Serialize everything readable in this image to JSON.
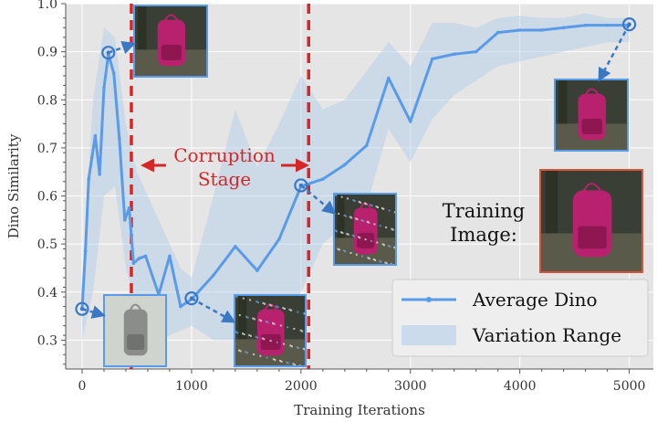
{
  "chart_data": {
    "type": "line",
    "xlabel": "Training Iterations",
    "ylabel": "Dino Similarity",
    "xlim": [
      -150,
      5220
    ],
    "ylim": [
      0.24,
      1.0
    ],
    "x_ticks": [
      0,
      1000,
      2000,
      3000,
      4000,
      5000
    ],
    "y_ticks": [
      0.3,
      0.4,
      0.5,
      0.6,
      0.7,
      0.8,
      0.9,
      1.0
    ],
    "grid": true,
    "legend_position": "bottom-right",
    "series": [
      {
        "name": "Average Dino",
        "color": "#5a9be8",
        "x": [
          0,
          30,
          60,
          90,
          120,
          160,
          200,
          240,
          290,
          340,
          390,
          430,
          470,
          520,
          580,
          700,
          800,
          900,
          1000,
          1200,
          1400,
          1600,
          1800,
          2000,
          2200,
          2400,
          2600,
          2800,
          3000,
          3200,
          3400,
          3600,
          3800,
          4000,
          4200,
          4400,
          4600,
          4800,
          5000
        ],
        "values": [
          0.365,
          0.485,
          0.635,
          0.68,
          0.725,
          0.645,
          0.825,
          0.895,
          0.855,
          0.72,
          0.55,
          0.575,
          0.46,
          0.47,
          0.475,
          0.395,
          0.475,
          0.37,
          0.385,
          0.435,
          0.495,
          0.445,
          0.51,
          0.62,
          0.635,
          0.665,
          0.705,
          0.845,
          0.755,
          0.885,
          0.895,
          0.9,
          0.94,
          0.945,
          0.945,
          0.95,
          0.955,
          0.955,
          0.955
        ]
      },
      {
        "name": "Variation Range",
        "color": "#aac8ea",
        "type": "area",
        "x": [
          0,
          100,
          200,
          300,
          400,
          500,
          700,
          900,
          1000,
          1200,
          1400,
          1600,
          1800,
          2000,
          2200,
          2400,
          2600,
          2800,
          3000,
          3200,
          3400,
          3600,
          3800,
          4000,
          4200,
          4400,
          4600,
          4800,
          5000
        ],
        "upper": [
          0.43,
          0.8,
          0.95,
          0.93,
          0.75,
          0.65,
          0.55,
          0.45,
          0.43,
          0.6,
          0.78,
          0.66,
          0.75,
          0.85,
          0.78,
          0.8,
          0.86,
          0.92,
          0.87,
          0.96,
          0.96,
          0.95,
          0.97,
          0.975,
          0.97,
          0.97,
          0.98,
          0.97,
          0.97
        ],
        "lower": [
          0.3,
          0.4,
          0.6,
          0.62,
          0.45,
          0.36,
          0.3,
          0.32,
          0.33,
          0.3,
          0.3,
          0.28,
          0.33,
          0.4,
          0.5,
          0.54,
          0.58,
          0.74,
          0.67,
          0.76,
          0.81,
          0.84,
          0.87,
          0.88,
          0.89,
          0.9,
          0.91,
          0.92,
          0.92
        ]
      }
    ],
    "vertical_lines": [
      {
        "x": 450,
        "color": "#d62728",
        "style": "dashed"
      },
      {
        "x": 2070,
        "color": "#d62728",
        "style": "dashed"
      }
    ],
    "highlighted_points": [
      {
        "x": 0,
        "y": 0.365
      },
      {
        "x": 240,
        "y": 0.898
      },
      {
        "x": 1000,
        "y": 0.387
      },
      {
        "x": 2000,
        "y": 0.622
      },
      {
        "x": 5000,
        "y": 0.957
      }
    ],
    "annotations": [
      {
        "text": "Corruption",
        "color": "#d62728"
      },
      {
        "text": "Stage",
        "color": "#d62728"
      },
      {
        "text": "Training",
        "color": "#111111"
      },
      {
        "text": "Image:",
        "color": "#111111"
      }
    ],
    "thumbnails": [
      {
        "name": "clean-backpack-thumbnail",
        "frame_color": "#5a9be8"
      },
      {
        "name": "peak-backpack-thumbnail",
        "frame_color": "#5a9be8"
      },
      {
        "name": "noisy-backpack-thumbnail-1000",
        "frame_color": "#5a9be8"
      },
      {
        "name": "noisy-backpack-thumbnail-2000",
        "frame_color": "#5a9be8"
      },
      {
        "name": "final-backpack-thumbnail",
        "frame_color": "#5a9be8"
      },
      {
        "name": "training-image-thumbnail",
        "frame_color": "#d9553a"
      }
    ]
  }
}
